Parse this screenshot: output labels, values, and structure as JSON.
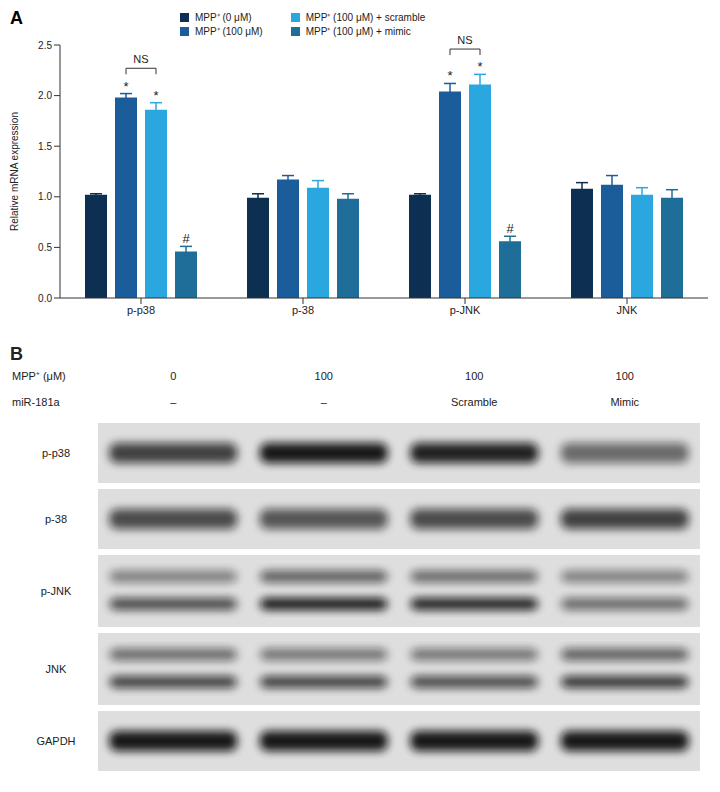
{
  "chart_data": {
    "type": "bar",
    "panel_label": "A",
    "y_label": "Relative mRNA expression",
    "categories": [
      "p-p38",
      "p-38",
      "p-JNK",
      "JNK"
    ],
    "series": [
      {
        "name": "MPP⁺ (0 μM)",
        "color": "#0c2f52",
        "values": [
          1.02,
          0.99,
          1.02,
          1.08
        ],
        "errors": [
          0.01,
          0.04,
          0.01,
          0.06
        ],
        "marks": [
          null,
          null,
          null,
          null
        ]
      },
      {
        "name": "MPP⁺ (100 μM)",
        "color": "#1b5c9a",
        "values": [
          1.98,
          1.17,
          2.04,
          1.12
        ],
        "errors": [
          0.04,
          0.04,
          0.08,
          0.09
        ],
        "marks": [
          "*",
          null,
          "*",
          null
        ]
      },
      {
        "name": "MPP⁺ (100 μM) + scramble",
        "color": "#2ba7df",
        "values": [
          1.86,
          1.09,
          2.11,
          1.02
        ],
        "errors": [
          0.07,
          0.07,
          0.1,
          0.07
        ],
        "marks": [
          "*",
          null,
          "*",
          null
        ]
      },
      {
        "name": "MPP⁺ (100 μM) + mimic",
        "color": "#1e6e99",
        "values": [
          0.46,
          0.98,
          0.56,
          0.99
        ],
        "errors": [
          0.05,
          0.05,
          0.05,
          0.08
        ],
        "marks": [
          "#",
          null,
          "#",
          null
        ]
      }
    ],
    "ylim": [
      0,
      2.5
    ],
    "yticks": [
      {
        "value": 0,
        "label": "0.0"
      },
      0.5,
      {
        "value": 1,
        "label": "1.0"
      },
      1.5,
      {
        "value": 2,
        "label": "2.0"
      },
      2.5
    ],
    "legend": "top",
    "annotations": [
      {
        "category": "p-p38",
        "between": [
          "MPP⁺ (100 μM)",
          "MPP⁺ (100 μM) + scramble"
        ],
        "text": "NS"
      },
      {
        "category": "p-JNK",
        "between": [
          "MPP⁺ (100 μM)",
          "MPP⁺ (100 μM) + scramble"
        ],
        "text": "NS"
      }
    ]
  },
  "blot": {
    "panel_label": "B",
    "header": [
      {
        "label": "MPP⁺ (μM)",
        "values": [
          0,
          100,
          100,
          100
        ]
      },
      {
        "label": "miR-181a",
        "values": [
          "–",
          "–",
          "Scramble",
          "Mimic"
        ]
      }
    ],
    "rows": [
      {
        "label": "p-p38",
        "bands": [
          [
            0.75,
            0.95,
            0.9,
            0.55
          ]
        ]
      },
      {
        "label": "p-38",
        "bands": [
          [
            0.7,
            0.65,
            0.7,
            0.75
          ]
        ]
      },
      {
        "label": "p-JNK",
        "bands": [
          [
            0.45,
            0.6,
            0.55,
            0.45
          ],
          [
            0.7,
            0.95,
            0.9,
            0.55
          ]
        ]
      },
      {
        "label": "JNK",
        "bands": [
          [
            0.55,
            0.5,
            0.5,
            0.6
          ],
          [
            0.75,
            0.75,
            0.7,
            0.8
          ]
        ]
      },
      {
        "label": "GAPDH",
        "bands": [
          [
            0.95,
            0.95,
            0.95,
            0.95
          ]
        ]
      }
    ]
  }
}
